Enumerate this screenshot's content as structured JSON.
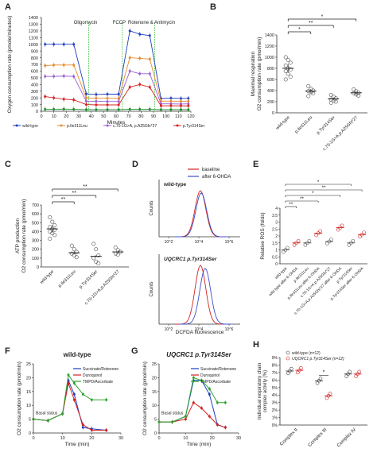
{
  "chart_data": [
    {
      "panel": "A",
      "type": "line",
      "xlabel": "Minutes",
      "ylabel": "Oxygen consumption rate (pmole/minutes)",
      "xlim": [
        0,
        120
      ],
      "ylim": [
        0,
        1400
      ],
      "xticks": [
        0,
        10,
        20,
        30,
        40,
        50,
        60,
        70,
        80,
        90,
        100,
        110,
        120
      ],
      "yticks": [
        0,
        100,
        200,
        300,
        400,
        500,
        600,
        700,
        800,
        900,
        1000,
        1100,
        1200,
        1300,
        1400
      ],
      "annotations": [
        "Oligomycin",
        "FCCP",
        "Rotenone & Antimycin"
      ],
      "annotation_x": [
        38,
        65,
        91
      ],
      "x": [
        3,
        10,
        18,
        26,
        36,
        44,
        53,
        62,
        71,
        79,
        87,
        96,
        104,
        112,
        118
      ],
      "series": [
        {
          "name": "wild-type",
          "color": "#1f3fbf",
          "values": [
            1000,
            1000,
            1000,
            1000,
            260,
            250,
            255,
            255,
            1200,
            1150,
            1130,
            190,
            195,
            190,
            192
          ]
        },
        {
          "name": "p.Ile311Leu",
          "color": "#e88a2e",
          "values": [
            680,
            690,
            690,
            690,
            200,
            195,
            195,
            190,
            800,
            790,
            780,
            150,
            150,
            148,
            150
          ]
        },
        {
          "name": "c.70-1G>A, p.A25Gfs*27",
          "color": "#9a5fd4",
          "values": [
            520,
            520,
            525,
            520,
            150,
            148,
            146,
            146,
            600,
            560,
            560,
            110,
            110,
            108,
            110
          ]
        },
        {
          "name": "p.Tyr314Ser",
          "color": "#d42020",
          "values": [
            220,
            200,
            180,
            170,
            100,
            95,
            95,
            95,
            360,
            400,
            360,
            80,
            82,
            80,
            80
          ]
        },
        {
          "name": "",
          "color": "#1a8a2a",
          "values": [
            30,
            30,
            32,
            30,
            25,
            25,
            25,
            25,
            30,
            30,
            30,
            25,
            25,
            25,
            25
          ]
        }
      ]
    },
    {
      "panel": "B",
      "type": "scatter",
      "ylabel": "Maximal respiration O2 consumption rate (pmol/min)",
      "categories": [
        "wild-type",
        "p.Ile311Leu",
        "p.Tyr314Ser",
        "c.70-1G>A,p.A25Gfs*27"
      ],
      "ylim": [
        0,
        1400
      ],
      "yticks": [
        0,
        200,
        400,
        600,
        800,
        1000,
        1200,
        1400
      ],
      "means": [
        800,
        390,
        250,
        360
      ],
      "points": [
        [
          1000,
          950,
          900,
          850,
          800,
          780,
          750,
          700,
          650,
          600
        ],
        [
          480,
          430,
          400,
          390,
          370,
          350,
          300
        ],
        [
          320,
          290,
          260,
          240,
          220,
          200,
          180
        ],
        [
          420,
          390,
          360,
          350,
          330,
          310
        ]
      ],
      "significance": [
        "*",
        "**",
        "*"
      ]
    },
    {
      "panel": "C",
      "type": "scatter",
      "ylabel": "ATP production O2 consumption rate (pmol/min)",
      "categories": [
        "wild-type",
        "p.Ile311Leu",
        "p.Tyr314Ser",
        "c.70-1G>A,p.A25Gfs*27"
      ],
      "ylim": [
        0,
        700
      ],
      "yticks": [
        0,
        100,
        200,
        300,
        400,
        500,
        600,
        700
      ],
      "means": [
        430,
        160,
        120,
        170
      ],
      "points": [
        [
          560,
          510,
          470,
          450,
          430,
          420,
          400,
          380,
          360,
          320
        ],
        [
          240,
          200,
          170,
          150,
          130,
          110
        ],
        [
          260,
          200,
          130,
          100,
          60,
          40
        ],
        [
          220,
          190,
          170,
          150,
          140
        ]
      ],
      "significance": [
        "**",
        "**",
        "**"
      ]
    },
    {
      "panel": "D",
      "type": "line",
      "xlabel": "DCFDA fluorescence",
      "ylabel": "Counts",
      "legend": [
        "baseline",
        "after 6-OHDA"
      ],
      "subpanels": [
        "wild-type",
        "UQCRC1 p.Tyr314Ser"
      ],
      "xticks": [
        "10^2",
        "10^4",
        "10^6"
      ]
    },
    {
      "panel": "E",
      "type": "scatter",
      "ylabel": "Relative ROS (folds)",
      "categories": [
        "wild-type",
        "wild type after 6-OHDA",
        "p.Ile311Leu",
        "p.Ile311Leu after 6-OHDA",
        "c.70-1G>A,p.A25Gfs*27",
        "c.70-1G>A,p.A25Gfs*27 after 6-OHDA",
        "p.Tyr314Ser",
        "p.Tyr314Ser after 6-OHDA"
      ],
      "ylim": [
        0,
        4
      ],
      "yticks": [
        0,
        0.5,
        1,
        1.5,
        2,
        2.5,
        3,
        3.5,
        4
      ],
      "means": [
        1.0,
        1.5,
        1.5,
        2.2,
        1.6,
        2.6,
        1.5,
        2.1
      ],
      "significance": [
        "**",
        "**",
        "*",
        "**",
        "*"
      ]
    },
    {
      "panel": "F",
      "type": "line",
      "title": "wild-type",
      "xlabel": "Time (min)",
      "ylabel": "O2 consumption rate (pmol/min)",
      "annotation": "Basal status",
      "xlim": [
        0,
        30
      ],
      "ylim": [
        0,
        25
      ],
      "xticks": [
        0,
        10,
        20,
        30
      ],
      "yticks": [
        0,
        5,
        10,
        15,
        20,
        25
      ],
      "x": [
        0,
        5,
        10,
        12,
        14,
        17,
        20,
        25
      ],
      "series": [
        {
          "name": "Succinate/Rotenone",
          "color": "#1f3fbf",
          "values": [
            5,
            4.5,
            7,
            19,
            14,
            2,
            1.5,
            1
          ]
        },
        {
          "name": "Duroquinol",
          "color": "#d42020",
          "values": [
            5,
            4.5,
            7,
            18,
            12,
            3,
            1,
            1
          ]
        },
        {
          "name": "TMPD/Ascorbate",
          "color": "#2aa52a",
          "values": [
            5,
            4.5,
            7,
            21,
            18,
            14,
            12,
            12
          ]
        }
      ]
    },
    {
      "panel": "G",
      "type": "line",
      "title": "UQCRC1 p.Tyr314Ser",
      "xlabel": "Time (min)",
      "ylabel": "O2 consumption rate (pmol/min)",
      "annotation": "Basal status",
      "xlim": [
        0,
        30
      ],
      "ylim": [
        0,
        25
      ],
      "xticks": [
        0,
        10,
        20,
        30
      ],
      "yticks": [
        0,
        5,
        10,
        15,
        20,
        25
      ],
      "x": [
        0,
        5,
        10,
        13,
        16,
        19,
        22,
        25
      ],
      "series": [
        {
          "name": "Succinate/Rotenone",
          "color": "#1f3fbf",
          "values": [
            4,
            4,
            6,
            19,
            19,
            14,
            3,
            2
          ]
        },
        {
          "name": "Duroquinol",
          "color": "#d42020",
          "values": [
            4,
            4,
            5,
            11,
            9,
            6,
            3,
            2
          ]
        },
        {
          "name": "TMPD/Ascorbate",
          "color": "#2aa52a",
          "values": [
            4,
            4,
            6,
            20,
            19,
            16,
            11,
            11
          ]
        }
      ]
    },
    {
      "panel": "H",
      "type": "scatter",
      "ylabel": "Individual respiratory chain complex activity (%)",
      "categories": [
        "Complex II",
        "Complex III",
        "Complex IV"
      ],
      "ylim": [
        0,
        9
      ],
      "yticks": [
        0,
        1,
        2,
        3,
        4,
        5,
        6,
        7,
        8,
        9
      ],
      "series": [
        {
          "name": "wild-type (n=12)",
          "color": "#444444",
          "means": [
            7.2,
            5.9,
            6.8
          ]
        },
        {
          "name": "UQCRC1 p.Tyr314Ser (n=12)",
          "color": "#d42020",
          "means": [
            7.3,
            3.9,
            6.8
          ]
        }
      ],
      "significance": [
        "*"
      ]
    }
  ],
  "panels": {
    "A": "A",
    "B": "B",
    "C": "C",
    "D": "D",
    "E": "E",
    "F": "F",
    "G": "G",
    "H": "H"
  }
}
